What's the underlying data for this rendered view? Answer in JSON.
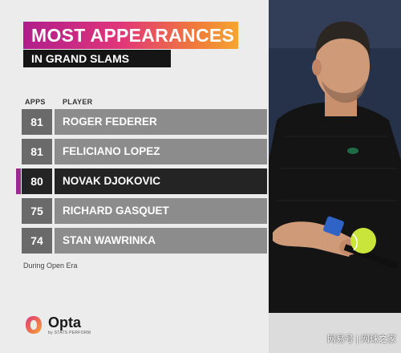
{
  "title": "MOST APPEARANCES",
  "subtitle": "IN GRAND SLAMS",
  "table": {
    "header_apps": "APPS",
    "header_player": "PLAYER",
    "rows": [
      {
        "apps": "81",
        "player": "ROGER FEDERER",
        "highlight": false
      },
      {
        "apps": "81",
        "player": "FELICIANO LOPEZ",
        "highlight": false
      },
      {
        "apps": "80",
        "player": "NOVAK DJOKOVIC",
        "highlight": true
      },
      {
        "apps": "75",
        "player": "RICHARD GASQUET",
        "highlight": false
      },
      {
        "apps": "74",
        "player": "STAN WAWRINKA",
        "highlight": false
      }
    ]
  },
  "footnote": "During Open Era",
  "logo": {
    "name": "Opta",
    "sub": "by STATS PERFORM"
  },
  "watermark": "网易号 | 网球之家",
  "colors": {
    "accent": "#9b2a8e",
    "title_gradient_start": "#b01e8c",
    "title_gradient_end": "#f6a531",
    "row_dark": "#242424",
    "row_gray": "#8c8c8c"
  }
}
